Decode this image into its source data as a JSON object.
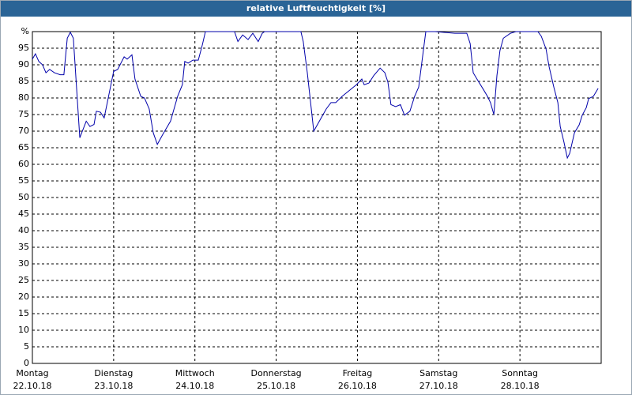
{
  "chart_data": {
    "type": "line",
    "title": "relative Luftfeuchtigkeit [%]",
    "xlim": [
      0,
      168
    ],
    "xticks": [
      {
        "value": 0,
        "label": "Montag"
      },
      {
        "value": 24,
        "label": "Dienstag"
      },
      {
        "value": 48,
        "label": "Mittwoch"
      },
      {
        "value": 72,
        "label": "Donnerstag"
      },
      {
        "value": 96,
        "label": "Freitag"
      },
      {
        "value": 120,
        "label": "Samstag"
      },
      {
        "value": 144,
        "label": "Sonntag"
      }
    ],
    "xtick_dates": [
      "22.10.18",
      "23.10.18",
      "24.10.18",
      "25.10.18",
      "26.10.18",
      "27.10.18",
      "28.10.18"
    ],
    "ylim": [
      0,
      100
    ],
    "yticks": [
      0,
      5,
      10,
      15,
      20,
      25,
      30,
      35,
      40,
      45,
      50,
      55,
      60,
      65,
      70,
      75,
      80,
      85,
      90,
      95,
      {
        "value": 100,
        "label": "%"
      }
    ],
    "grid": true,
    "x": [
      0,
      0.9,
      1.9,
      3.0,
      4.0,
      5.1,
      6.5,
      8.2,
      9.3,
      10.3,
      11.2,
      12.1,
      14.0,
      15.9,
      17.0,
      18.2,
      18.9,
      20.1,
      21.2,
      22.6,
      24.0,
      25.2,
      27.1,
      28.0,
      29.4,
      30.3,
      32.0,
      33.1,
      34.5,
      35.7,
      36.9,
      38.5,
      40.8,
      42.9,
      44.3,
      45.0,
      46.0,
      47.4,
      49.0,
      50.2,
      51.1,
      59.7,
      60.7,
      62.1,
      63.7,
      65.1,
      66.7,
      67.9,
      68.6,
      79.3,
      80.0,
      81.2,
      83.1,
      85.2,
      86.8,
      88.2,
      89.6,
      91.5,
      93.3,
      95.7,
      97.3,
      98.0,
      99.4,
      100.8,
      102.7,
      104.1,
      105.0,
      105.9,
      107.3,
      108.7,
      109.9,
      111.5,
      112.9,
      114.1,
      115.3,
      116.2,
      119.0,
      121.3,
      124.8,
      128.3,
      129.3,
      130.2,
      131.6,
      133.0,
      134.4,
      135.3,
      136.3,
      137.2,
      138.1,
      139.1,
      141.2,
      142.8,
      149.3,
      150.3,
      151.7,
      152.6,
      154.0,
      155.2,
      155.9,
      157.0,
      158.0,
      158.7,
      160.1,
      161.5,
      162.4,
      163.6,
      164.3,
      165.7,
      167.1
    ],
    "series": [
      {
        "color": "#0000aa",
        "values": [
          91.7,
          93.3,
          91,
          90,
          87.6,
          88.6,
          87.6,
          87,
          87,
          98,
          99.8,
          98,
          68,
          73,
          71.4,
          72,
          76,
          75.7,
          74,
          81,
          88,
          88.6,
          92.4,
          91.7,
          93,
          85.7,
          80.5,
          80,
          76.7,
          69.5,
          66,
          69,
          73,
          80.5,
          84,
          91,
          90.5,
          91.4,
          91.4,
          96,
          100,
          100,
          97,
          99,
          97.6,
          99.5,
          97,
          99.5,
          100,
          100,
          97,
          87.6,
          70,
          73.8,
          76.7,
          78.6,
          78.6,
          80.5,
          82,
          84,
          85.7,
          84,
          84.5,
          86.7,
          89,
          87.6,
          84.8,
          78,
          77.4,
          78,
          74.8,
          76,
          80.5,
          83.3,
          92.9,
          100,
          100,
          99.8,
          99.5,
          99.5,
          96.4,
          87.6,
          85.2,
          82.9,
          80.5,
          78.6,
          75,
          86.7,
          94.3,
          98,
          99.5,
          100,
          100,
          98.6,
          94.8,
          89.5,
          83.3,
          78.6,
          71.4,
          66.7,
          61.9,
          63.3,
          69.5,
          71.9,
          74.8,
          77.1,
          79.8,
          80.5,
          82.9
        ]
      }
    ]
  }
}
